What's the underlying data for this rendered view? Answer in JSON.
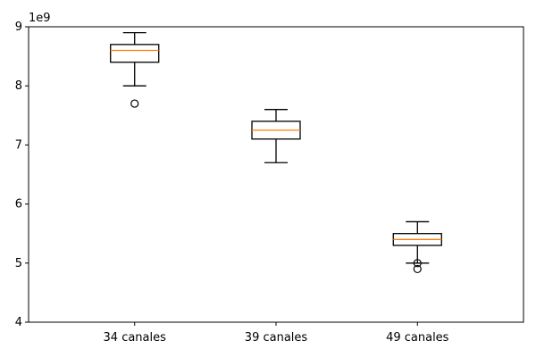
{
  "chart_data": {
    "type": "box",
    "title": "",
    "xlabel": "",
    "ylabel": "",
    "offset_label": "1e9",
    "ylim": [
      4,
      9
    ],
    "yticks": [
      "4",
      "5",
      "6",
      "7",
      "8",
      "9"
    ],
    "categories": [
      "34 canales",
      "39 canales",
      "49 canales"
    ],
    "boxes": [
      {
        "label": "34 canales",
        "whisker_low": 8.0,
        "q1": 8.4,
        "median": 8.6,
        "q3": 8.7,
        "whisker_high": 8.9,
        "outliers": [
          7.7
        ]
      },
      {
        "label": "39 canales",
        "whisker_low": 6.7,
        "q1": 7.1,
        "median": 7.25,
        "q3": 7.4,
        "whisker_high": 7.6,
        "outliers": []
      },
      {
        "label": "49 canales",
        "whisker_low": 5.0,
        "q1": 5.3,
        "median": 5.4,
        "q3": 5.5,
        "whisker_high": 5.7,
        "outliers": [
          5.0,
          4.9
        ]
      }
    ],
    "colors": {
      "box": "#000000",
      "median": "#ff7f0e",
      "outlier_edge": "#000000"
    }
  }
}
